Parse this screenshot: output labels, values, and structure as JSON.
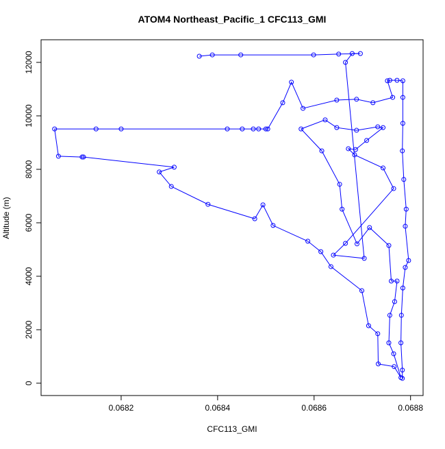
{
  "chart_data": {
    "type": "line",
    "title": "ATOM4 Northeast_Pacific_1 CFC113_GMI",
    "x_label": "CFC113_GMI",
    "y_label": "Altitude (m)",
    "x": [
      0.068783,
      0.068783,
      0.06878,
      0.068781,
      0.068784,
      0.068789,
      0.068796,
      0.068789,
      0.068791,
      0.068786,
      0.068783,
      0.068784,
      0.068784,
      0.068784,
      0.068772,
      0.068757,
      0.068752,
      0.068763,
      0.068722,
      0.068688,
      0.068647,
      0.068577,
      0.068553,
      0.068535,
      0.068504,
      0.0685,
      0.068485,
      0.068474,
      0.068451,
      0.06842,
      0.0682,
      0.068148,
      0.068062,
      0.06807,
      0.068119,
      0.068122,
      0.06831,
      0.068279,
      0.068304,
      0.06838,
      0.068477,
      0.068494,
      0.068515,
      0.068587,
      0.068614,
      0.068635,
      0.068699,
      0.068713,
      0.068732,
      0.068733,
      0.068766,
      0.06878,
      0.068765,
      0.068755,
      0.068757,
      0.068767,
      0.068772,
      0.06876,
      0.068755,
      0.068715,
      0.068689,
      0.068658,
      0.068653,
      0.068616,
      0.068573,
      0.068623,
      0.068647,
      0.068688,
      0.068732,
      0.068743,
      0.068709,
      0.068686,
      0.068671,
      0.068684,
      0.068743,
      0.068765,
      0.068665,
      0.06864,
      0.068704,
      0.068665,
      0.068679,
      0.068696,
      0.068651,
      0.068599,
      0.068448,
      0.068389,
      0.068362
    ],
    "y": [
      180,
      490,
      1510,
      2540,
      3560,
      4330,
      4590,
      5870,
      6510,
      7620,
      8690,
      9720,
      10690,
      11310,
      11330,
      11330,
      11310,
      10690,
      10490,
      10620,
      10590,
      10280,
      11260,
      10490,
      9510,
      9510,
      9510,
      9510,
      9510,
      9510,
      9510,
      9510,
      9510,
      8490,
      8460,
      8460,
      8080,
      7900,
      7360,
      6690,
      6150,
      6670,
      5900,
      5310,
      4920,
      4360,
      3460,
      2150,
      1850,
      720,
      620,
      210,
      1100,
      1510,
      2540,
      3050,
      3820,
      3820,
      5150,
      5820,
      5210,
      6510,
      7440,
      8690,
      9510,
      9850,
      9560,
      9460,
      9590,
      9560,
      9080,
      8740,
      8770,
      8540,
      8050,
      7280,
      5230,
      4790,
      4670,
      12000,
      12330,
      12330,
      12310,
      12280,
      12280,
      12280,
      12230
    ],
    "color": "#0000ff",
    "xlim": [
      0.068034,
      0.068826
    ],
    "ylim": [
      -462,
      12846
    ],
    "xticks": [
      0.0682,
      0.0684,
      0.0686,
      0.0688
    ],
    "yticks": [
      0,
      2000,
      4000,
      6000,
      8000,
      10000,
      12000
    ]
  }
}
